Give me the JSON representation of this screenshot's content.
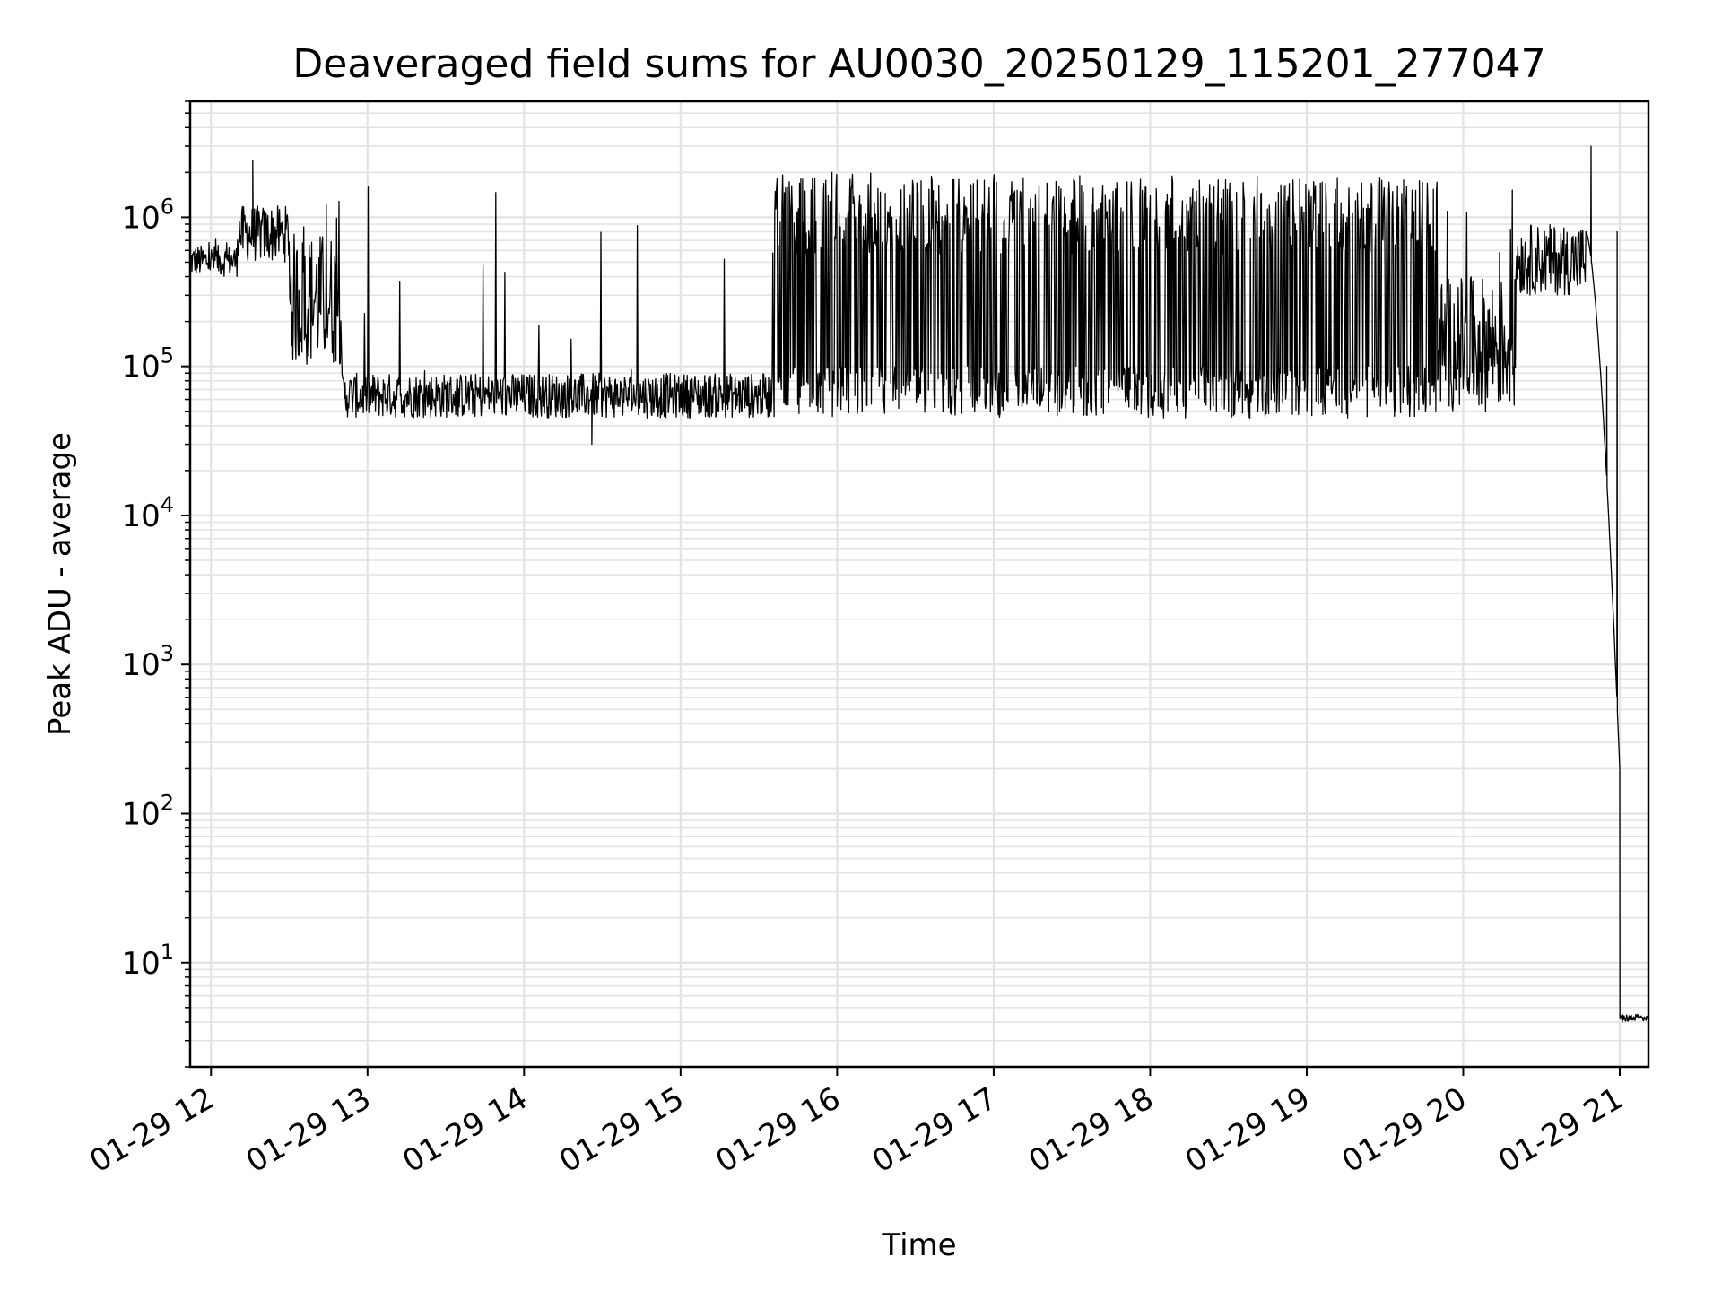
{
  "chart_data": {
    "type": "line",
    "title": "Deaveraged field sums for AU0030_20250129_115201_277047",
    "xlabel": "Time",
    "ylabel": "Peak ADU - average",
    "yscale": "log",
    "ylim": [
      2,
      6000000
    ],
    "xlim": [
      "2025-01-29 11:52",
      "2025-01-29 21:11"
    ],
    "grid": true,
    "legend": "none",
    "line_color": "#000000",
    "x_ticks": [
      {
        "t": "2025-01-29 12:00",
        "label": "01-29 12"
      },
      {
        "t": "2025-01-29 13:00",
        "label": "01-29 13"
      },
      {
        "t": "2025-01-29 14:00",
        "label": "01-29 14"
      },
      {
        "t": "2025-01-29 15:00",
        "label": "01-29 15"
      },
      {
        "t": "2025-01-29 16:00",
        "label": "01-29 16"
      },
      {
        "t": "2025-01-29 17:00",
        "label": "01-29 17"
      },
      {
        "t": "2025-01-29 18:00",
        "label": "01-29 18"
      },
      {
        "t": "2025-01-29 19:00",
        "label": "01-29 19"
      },
      {
        "t": "2025-01-29 20:00",
        "label": "01-29 20"
      },
      {
        "t": "2025-01-29 21:00",
        "label": "01-29 21"
      }
    ],
    "y_ticks": [
      {
        "value": 10,
        "base": "10",
        "exp": "1"
      },
      {
        "value": 100,
        "base": "10",
        "exp": "2"
      },
      {
        "value": 1000,
        "base": "10",
        "exp": "3"
      },
      {
        "value": 10000,
        "base": "10",
        "exp": "4"
      },
      {
        "value": 100000,
        "base": "10",
        "exp": "5"
      },
      {
        "value": 1000000,
        "base": "10",
        "exp": "6"
      }
    ],
    "segments": [
      {
        "start": "2025-01-29 11:52",
        "end": "2025-01-29 12:10",
        "low": 400000,
        "high": 650000,
        "spike_max": 750000
      },
      {
        "start": "2025-01-29 12:10",
        "end": "2025-01-29 12:30",
        "low": 500000,
        "high": 1200000,
        "spike_max": 2400000
      },
      {
        "start": "2025-01-29 12:30",
        "end": "2025-01-29 12:50",
        "low": 100000,
        "high": 800000,
        "spike_max": 1400000
      },
      {
        "start": "2025-01-29 12:50",
        "end": "2025-01-29 15:35",
        "low": 45000,
        "high": 90000,
        "spike_max": 1800000
      },
      {
        "start": "2025-01-29 15:35",
        "end": "2025-01-29 19:50",
        "low": 45000,
        "high": 1800000,
        "spike_max": 2000000
      },
      {
        "start": "2025-01-29 19:50",
        "end": "2025-01-29 20:20",
        "low": 50000,
        "high": 400000,
        "spike_max": 2000000
      },
      {
        "start": "2025-01-29 20:20",
        "end": "2025-01-29 20:47",
        "low": 300000,
        "high": 900000,
        "spike_max": 3000000
      },
      {
        "start": "2025-01-29 20:47",
        "end": "2025-01-29 21:00",
        "low": 200,
        "high": 800000,
        "spike_max": 800000
      },
      {
        "start": "2025-01-29 21:00",
        "end": "2025-01-29 21:11",
        "low": 4,
        "high": 4.5,
        "spike_max": 4.5
      }
    ],
    "notable_points": [
      {
        "t": "2025-01-29 12:16",
        "y": 2400000
      },
      {
        "t": "2025-01-29 14:26",
        "y": 30000
      },
      {
        "t": "2025-01-29 15:58",
        "y": 2000000
      },
      {
        "t": "2025-01-29 20:49",
        "y": 3000000
      },
      {
        "t": "2025-01-29 20:55",
        "y": 100000
      },
      {
        "t": "2025-01-29 20:59",
        "y": 800000
      },
      {
        "t": "2025-01-29 21:00",
        "y": 200
      },
      {
        "t": "2025-01-29 21:01",
        "y": 4
      }
    ]
  }
}
